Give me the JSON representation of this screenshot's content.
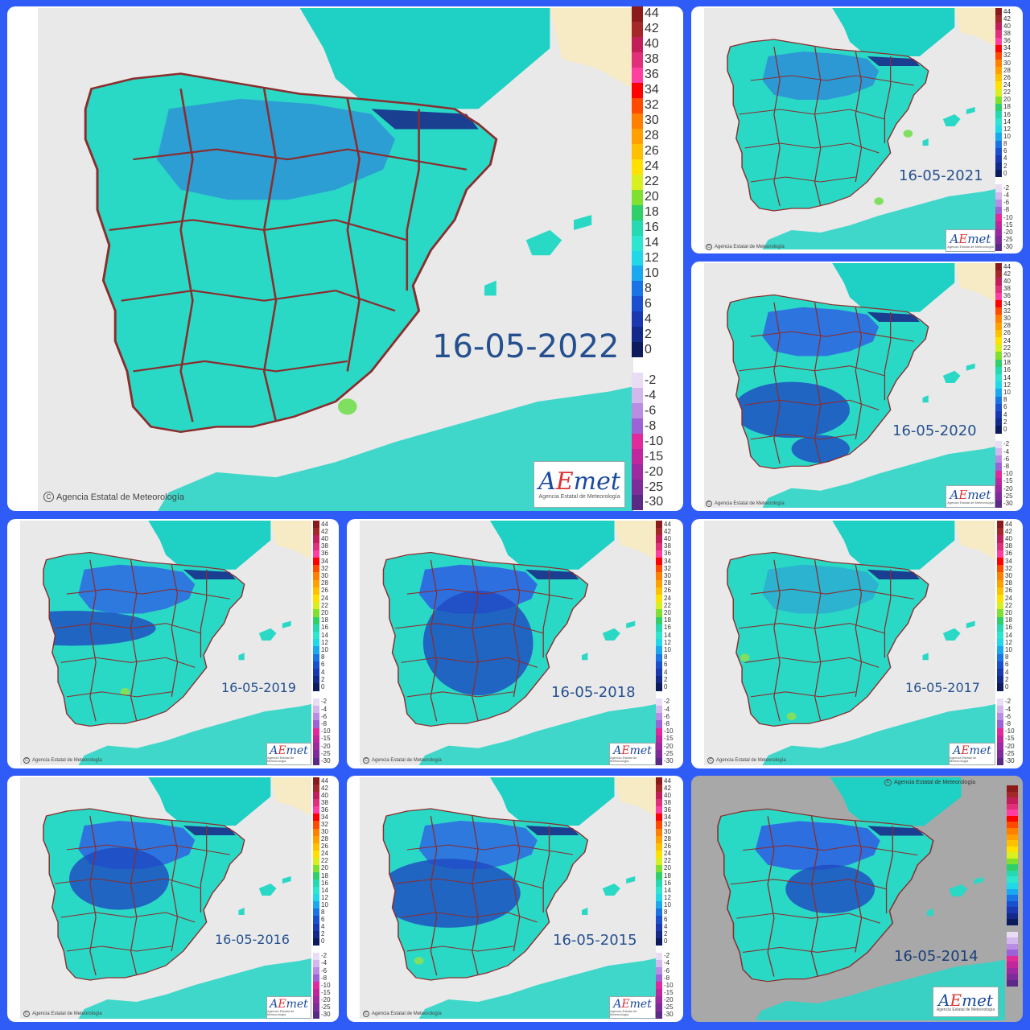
{
  "panels": [
    {
      "id": "p2022",
      "date": "16-05-2022",
      "credit": "Agencia Estatal de Meteorología",
      "logo": "AEmet",
      "logo_sub": "Agencia Estatal de Meteorología"
    },
    {
      "id": "p2021",
      "date": "16-05-2021",
      "credit": "Agencia Estatal de Meteorología",
      "logo": "AEmet",
      "logo_sub": "Agencia Estatal de Meteorología"
    },
    {
      "id": "p2020",
      "date": "16-05-2020",
      "credit": "Agencia Estatal de Meteorología",
      "logo": "AEmet",
      "logo_sub": "Agencia Estatal de Meteorología"
    },
    {
      "id": "p2019",
      "date": "16-05-2019",
      "credit": "Agencia Estatal de Meteorología",
      "logo": "AEmet",
      "logo_sub": "Agencia Estatal de Meteorología"
    },
    {
      "id": "p2018",
      "date": "16-05-2018",
      "credit": "Agencia Estatal de Meteorología",
      "logo": "AEmet",
      "logo_sub": "Agencia Estatal de Meteorología"
    },
    {
      "id": "p2017",
      "date": "16-05-2017",
      "credit": "Agencia Estatal de Meteorología",
      "logo": "AEmet",
      "logo_sub": "Agencia Estatal de Meteorología"
    },
    {
      "id": "p2016",
      "date": "16-05-2016",
      "credit": "Agencia Estatal de Meteorología",
      "logo": "AEmet",
      "logo_sub": "Agencia Estatal de Meteorología"
    },
    {
      "id": "p2015",
      "date": "16-05-2015",
      "credit": "Agencia Estatal de Meteorología",
      "logo": "AEmet",
      "logo_sub": "Agencia Estatal de Meteorología"
    },
    {
      "id": "p2014",
      "date": "16-05-2014",
      "credit": "Agencia Estatal de Meteorología",
      "logo": "AEmet",
      "logo_sub": "Agencia Estatal de Meteorología"
    }
  ],
  "legend": {
    "positive": [
      {
        "v": "44",
        "c": "#8b1a1a"
      },
      {
        "v": "42",
        "c": "#a52828"
      },
      {
        "v": "40",
        "c": "#c21e5a"
      },
      {
        "v": "38",
        "c": "#e0307a"
      },
      {
        "v": "36",
        "c": "#ff3fa0"
      },
      {
        "v": "34",
        "c": "#ff0000"
      },
      {
        "v": "32",
        "c": "#ff4a00"
      },
      {
        "v": "30",
        "c": "#ff8000"
      },
      {
        "v": "28",
        "c": "#ffa000"
      },
      {
        "v": "26",
        "c": "#ffc000"
      },
      {
        "v": "24",
        "c": "#ffe000"
      },
      {
        "v": "22",
        "c": "#d8ef20"
      },
      {
        "v": "20",
        "c": "#80e030"
      },
      {
        "v": "18",
        "c": "#2fcf6a"
      },
      {
        "v": "16",
        "c": "#26d9b0"
      },
      {
        "v": "14",
        "c": "#2ee5d0"
      },
      {
        "v": "12",
        "c": "#20d8e8"
      },
      {
        "v": "10",
        "c": "#1aa8ee"
      },
      {
        "v": "8",
        "c": "#1b74e6"
      },
      {
        "v": "6",
        "c": "#1a4fd0"
      },
      {
        "v": "4",
        "c": "#1a38b0"
      },
      {
        "v": "2",
        "c": "#132a8a"
      },
      {
        "v": "0",
        "c": "#0d1a5c"
      }
    ],
    "negative": [
      {
        "v": "-2",
        "c": "#e9dcf5"
      },
      {
        "v": "-4",
        "c": "#d3b8ee"
      },
      {
        "v": "-6",
        "c": "#b98de2"
      },
      {
        "v": "-8",
        "c": "#9d62d6"
      },
      {
        "v": "-10",
        "c": "#e22b9a"
      },
      {
        "v": "-15",
        "c": "#c0279c"
      },
      {
        "v": "-20",
        "c": "#9e2aa0"
      },
      {
        "v": "-25",
        "c": "#7d2c9a"
      },
      {
        "v": "-30",
        "c": "#5a2a86"
      }
    ],
    "top_partial": "38"
  },
  "colors": {
    "sea": "#e9e9e9",
    "land": "#2ad8c6",
    "land_alt": "#3ae2cf",
    "cold": "#2e6fe0",
    "colder": "#1e48c0",
    "france": "#1fd0c4",
    "africa": "#2bd5c7",
    "border": "#8b2d2d",
    "sand": "#f6ebc4",
    "background": "#2f5cf6"
  }
}
